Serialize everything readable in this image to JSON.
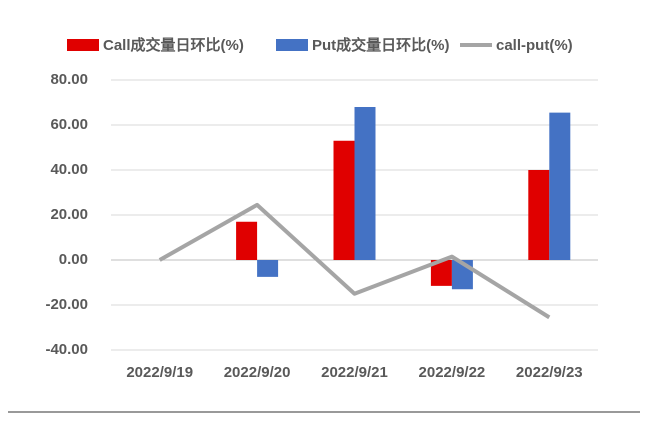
{
  "chart_data": {
    "type": "bar_line",
    "categories": [
      "2022/9/19",
      "2022/9/20",
      "2022/9/21",
      "2022/9/22",
      "2022/9/23"
    ],
    "series": [
      {
        "name": "Call成交量日环比(%)",
        "color": "#e00000",
        "type": "bar",
        "values": [
          0,
          17,
          53,
          -11.5,
          40
        ]
      },
      {
        "name": "Put成交量日环比(%)",
        "color": "#4472c4",
        "type": "bar",
        "values": [
          0,
          -7.5,
          68,
          -13,
          65.5
        ]
      },
      {
        "name": "call-put(%)",
        "color": "#a5a5a5",
        "type": "line",
        "values": [
          0,
          24.5,
          -15,
          1.5,
          -25.5
        ]
      }
    ],
    "ylim": [
      -40,
      80
    ],
    "yticks": [
      {
        "value": -40,
        "label": "-40.00"
      },
      {
        "value": -20,
        "label": "-20.00"
      },
      {
        "value": 0,
        "label": "0.00"
      },
      {
        "value": 20,
        "label": "20.00"
      },
      {
        "value": 40,
        "label": "40.00"
      },
      {
        "value": 60,
        "label": "60.00"
      },
      {
        "value": 80,
        "label": "80.00"
      }
    ],
    "grid": true,
    "legend": "top"
  }
}
